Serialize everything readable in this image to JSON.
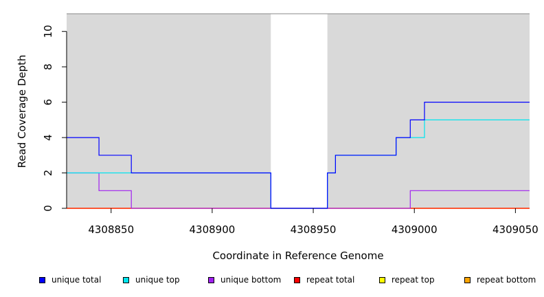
{
  "chart_data": {
    "type": "line",
    "title": "",
    "xlabel": "Coordinate in Reference Genome",
    "ylabel": "Read Coverage Depth",
    "xlim": [
      4308828,
      4309057
    ],
    "ylim": [
      0,
      11
    ],
    "x_ticks": [
      4308850,
      4308900,
      4308950,
      4309000,
      4309050
    ],
    "y_ticks": [
      0,
      2,
      4,
      6,
      8,
      10
    ],
    "x_tick_labels": [
      "4308850",
      "4308900",
      "4308950",
      "4309000",
      "4309050"
    ],
    "y_tick_labels": [
      "0",
      "2",
      "4",
      "6",
      "8",
      "10"
    ],
    "background_color": "#d9d9d9",
    "gap_region": [
      4308929,
      4308957
    ],
    "grid": false,
    "legend_position": "bottom",
    "series": [
      {
        "name": "unique total",
        "color": "#0000ff",
        "step": true,
        "x": [
          4308828,
          4308844,
          4308860,
          4308929,
          4308957,
          4308961,
          4308991,
          4308998,
          4309005,
          4309057
        ],
        "y": [
          4,
          3,
          2,
          0,
          2,
          3,
          4,
          5,
          6,
          6
        ]
      },
      {
        "name": "unique top",
        "color": "#00e5ee",
        "step": true,
        "x": [
          4308828,
          4308929,
          4308957,
          4308961,
          4308991,
          4309005,
          4309057
        ],
        "y": [
          2,
          0,
          2,
          3,
          4,
          5,
          5
        ]
      },
      {
        "name": "unique bottom",
        "color": "#a020f0",
        "step": true,
        "x": [
          4308828,
          4308844,
          4308860,
          4308998,
          4309057
        ],
        "y": [
          2,
          1,
          0,
          1,
          1
        ]
      },
      {
        "name": "repeat total",
        "color": "#ff0000",
        "step": true,
        "x": [
          4308828,
          4309057
        ],
        "y": [
          0,
          0
        ]
      },
      {
        "name": "repeat top",
        "color": "#ffff00",
        "step": true,
        "x": [
          4308828,
          4309057
        ],
        "y": [
          0,
          0
        ]
      },
      {
        "name": "repeat bottom",
        "color": "#ffa500",
        "step": true,
        "x": [
          4308828,
          4309057
        ],
        "y": [
          0,
          0
        ]
      }
    ]
  }
}
